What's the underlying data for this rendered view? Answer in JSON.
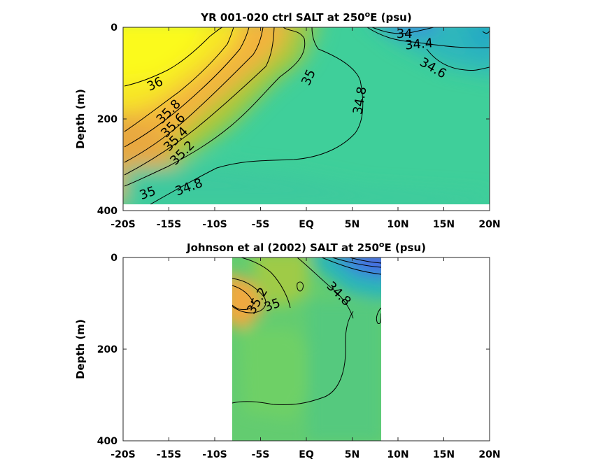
{
  "chart_data": [
    {
      "type": "heatmap",
      "title_prefix": "YR 001-020 ctrl SALT at 250",
      "title_sup": "o",
      "title_suffix": "E (psu)",
      "ylabel": "Depth (m)",
      "xlim": [
        -20,
        20
      ],
      "ylim": [
        400,
        0
      ],
      "x_ticks": [
        -20,
        -15,
        -10,
        -5,
        0,
        5,
        10,
        15,
        20
      ],
      "x_tick_labels": [
        "-20S",
        "-15S",
        "-10S",
        "-5S",
        "EQ",
        "5N",
        "10N",
        "15N",
        "20N"
      ],
      "y_ticks": [
        0,
        200,
        400
      ],
      "y_tick_labels": [
        "0",
        "200",
        "400"
      ],
      "data_x_range": [
        -20,
        20
      ],
      "data_y_range": [
        0,
        385
      ],
      "contour_labels": [
        {
          "text": "36",
          "x": -16.5,
          "y": 125,
          "rot": -25
        },
        {
          "text": "35.8",
          "x": -15,
          "y": 185,
          "rot": -45
        },
        {
          "text": "35.6",
          "x": -14.5,
          "y": 215,
          "rot": -45
        },
        {
          "text": "35.4",
          "x": -14.2,
          "y": 245,
          "rot": -45
        },
        {
          "text": "35.2",
          "x": -13.5,
          "y": 275,
          "rot": -45
        },
        {
          "text": "35",
          "x": -17.3,
          "y": 363,
          "rot": -20
        },
        {
          "text": "34.8",
          "x": -12.8,
          "y": 350,
          "rot": -20
        },
        {
          "text": "35",
          "x": 0.3,
          "y": 110,
          "rot": -65
        },
        {
          "text": "34.8",
          "x": 5.9,
          "y": 160,
          "rot": -80
        },
        {
          "text": "34",
          "x": 10.7,
          "y": 15,
          "rot": 0
        },
        {
          "text": "34.4",
          "x": 12.3,
          "y": 38,
          "rot": -5
        },
        {
          "text": "34.6",
          "x": 13.8,
          "y": 90,
          "rot": 30
        }
      ]
    },
    {
      "type": "heatmap",
      "title_prefix": "Johnson et al (2002) SALT at 250",
      "title_sup": "o",
      "title_suffix": "E (psu)",
      "ylabel": "Depth (m)",
      "xlim": [
        -20,
        20
      ],
      "ylim": [
        400,
        0
      ],
      "x_ticks": [
        -20,
        -15,
        -10,
        -5,
        0,
        5,
        10,
        15,
        20
      ],
      "x_tick_labels": [
        "-20S",
        "-15S",
        "-10S",
        "-5S",
        "EQ",
        "5N",
        "10N",
        "15N",
        "20N"
      ],
      "y_ticks": [
        0,
        200,
        400
      ],
      "y_tick_labels": [
        "0",
        "200",
        "400"
      ],
      "data_x_range": [
        -8,
        8.2
      ],
      "data_y_range": [
        0,
        400
      ],
      "contour_labels": [
        {
          "text": "35.2",
          "x": -5.3,
          "y": 95,
          "rot": -60
        },
        {
          "text": "35",
          "x": -3.7,
          "y": 105,
          "rot": -20
        },
        {
          "text": "34.8",
          "x": 3.5,
          "y": 80,
          "rot": 45
        }
      ]
    }
  ]
}
